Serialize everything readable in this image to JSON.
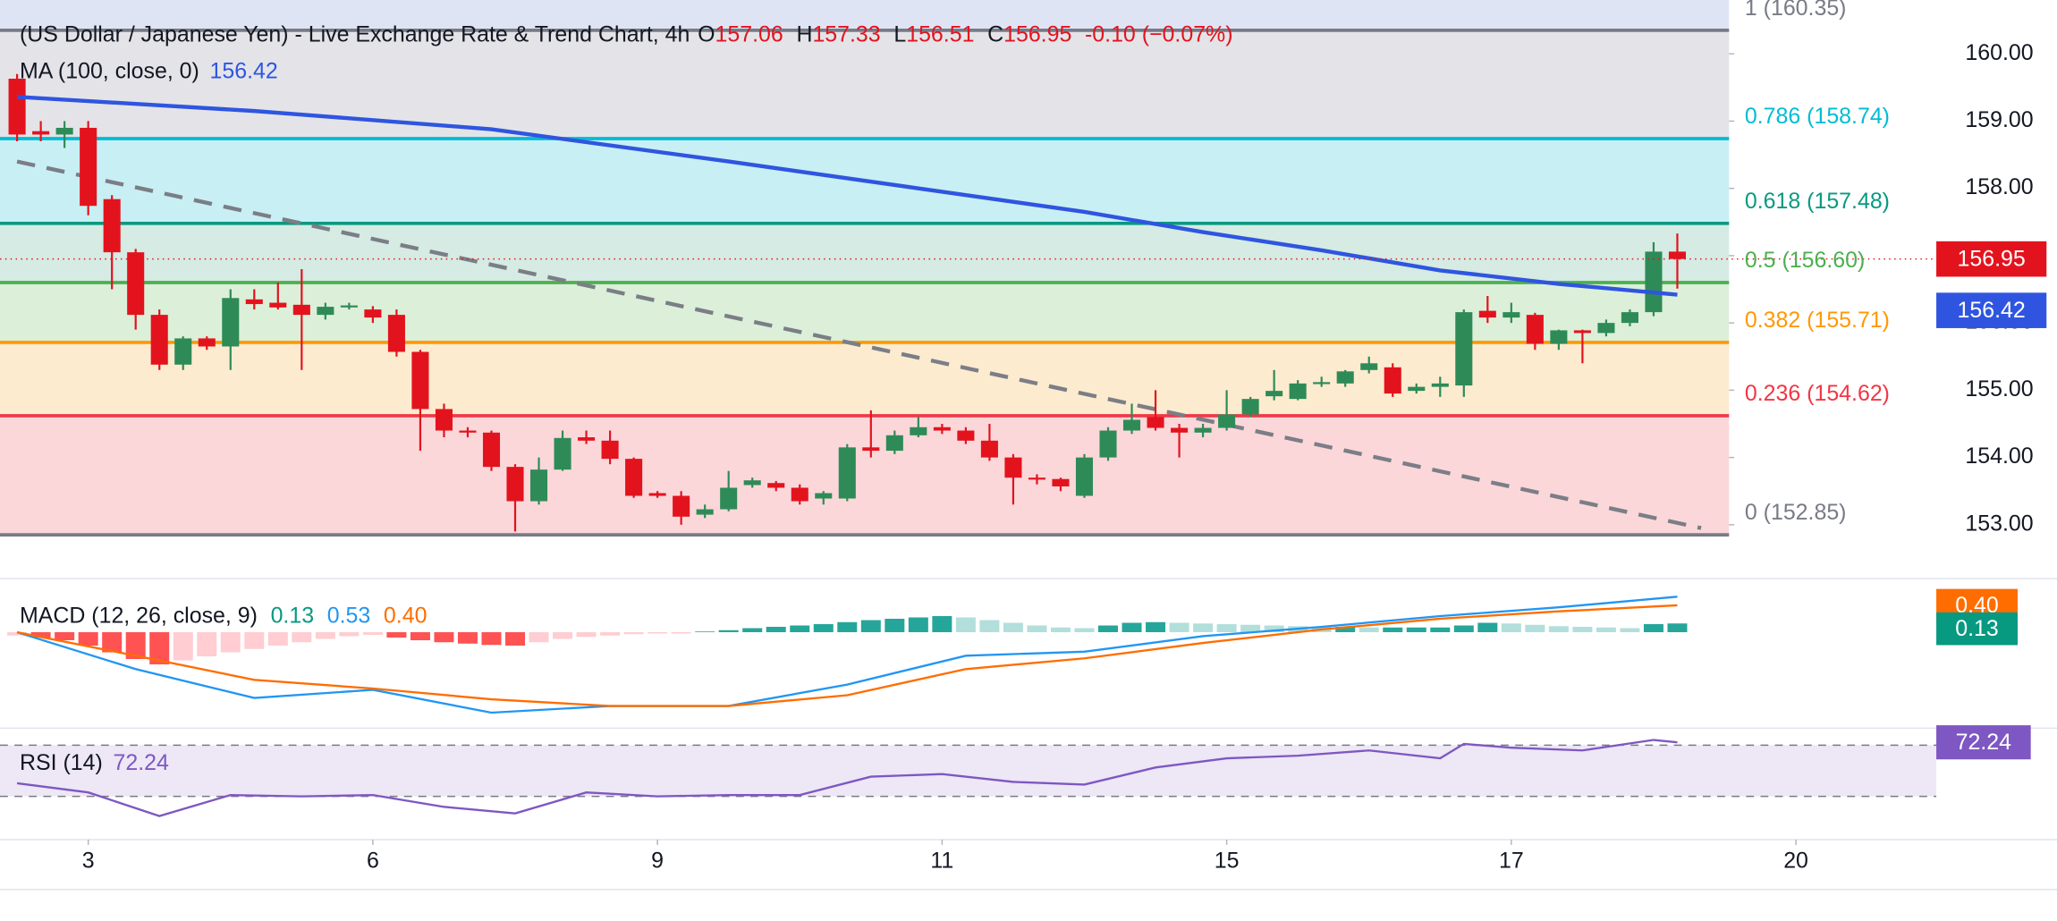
{
  "chart_data": [
    {
      "type": "candlestick",
      "title": "(US Dollar / Japanese Yen) - Live Exchange Rate & Trend Chart, 4h",
      "ohlc_legend": [
        {
          "label": "O",
          "value": 157.06
        },
        {
          "label": "H",
          "value": 157.33
        },
        {
          "label": "L",
          "value": 156.51
        },
        {
          "label": "C",
          "value": 156.95
        }
      ],
      "change": "-0.10 (−0.07%)",
      "xlim": [
        -0.72,
        72.18
      ],
      "xticks": [
        {
          "value": 3,
          "label": "3"
        },
        {
          "value": 15,
          "label": "6"
        },
        {
          "value": 27,
          "label": "9"
        },
        {
          "value": 39,
          "label": "11"
        },
        {
          "value": 51,
          "label": "15"
        },
        {
          "value": 63,
          "label": "17"
        },
        {
          "value": 75,
          "label": "20"
        }
      ],
      "ylim": [
        152.2,
        160.8
      ],
      "yticks": [
        {
          "value": 153,
          "label": "153.00"
        },
        {
          "value": 154,
          "label": "154.00"
        },
        {
          "value": 155,
          "label": "155.00"
        },
        {
          "value": 156,
          "label": "156.00"
        },
        {
          "value": 157,
          "label": "157.00"
        },
        {
          "value": 158,
          "label": "158.00"
        },
        {
          "value": 159,
          "label": "159.00"
        },
        {
          "value": 160,
          "label": "160.00"
        }
      ],
      "up_color": "#2e8b57",
      "down_color": "#e3131e",
      "x": [
        0,
        1,
        2,
        3,
        4,
        5,
        6,
        7,
        8,
        9,
        10,
        11,
        12,
        13,
        14,
        15,
        16,
        17,
        18,
        19,
        20,
        21,
        22,
        23,
        24,
        25,
        26,
        27,
        28,
        29,
        30,
        31,
        32,
        33,
        34,
        35,
        36,
        37,
        38,
        39,
        40,
        41,
        42,
        43,
        44,
        45,
        46,
        47,
        48,
        49,
        50,
        51,
        52,
        53,
        54,
        55,
        56,
        57,
        58,
        59,
        60,
        61,
        62,
        63,
        64,
        65,
        66,
        67,
        68,
        69,
        70
      ],
      "open": [
        159.63,
        158.85,
        158.8,
        158.9,
        157.84,
        157.05,
        156.12,
        155.38,
        155.77,
        155.65,
        156.35,
        156.3,
        156.27,
        156.12,
        156.25,
        156.2,
        156.12,
        155.57,
        154.72,
        154.4,
        154.37,
        153.86,
        153.35,
        153.82,
        154.3,
        154.25,
        153.98,
        153.47,
        153.43,
        153.15,
        153.23,
        153.59,
        153.62,
        153.55,
        153.39,
        153.39,
        154.15,
        154.1,
        154.33,
        154.45,
        154.4,
        154.25,
        154.0,
        153.7,
        153.68,
        153.43,
        154.0,
        154.4,
        154.6,
        154.44,
        154.37,
        154.44,
        154.64,
        154.91,
        154.87,
        155.1,
        155.1,
        155.3,
        155.34,
        154.99,
        155.05,
        155.07,
        156.18,
        156.08,
        156.12,
        155.69,
        155.89,
        155.85,
        156.0,
        156.16,
        157.06
      ],
      "high": [
        159.7,
        159.0,
        159.0,
        159.0,
        157.9,
        157.1,
        156.2,
        155.8,
        155.8,
        156.5,
        156.5,
        156.6,
        156.8,
        156.3,
        156.3,
        156.25,
        156.2,
        155.6,
        154.8,
        154.45,
        154.4,
        153.9,
        154.0,
        154.4,
        154.4,
        154.4,
        154.0,
        153.5,
        153.5,
        153.3,
        153.8,
        153.7,
        153.65,
        153.6,
        153.5,
        154.2,
        154.7,
        154.4,
        154.6,
        154.5,
        154.45,
        154.5,
        154.05,
        153.75,
        153.7,
        154.05,
        154.45,
        154.8,
        155.0,
        154.5,
        154.5,
        155.0,
        154.9,
        155.3,
        155.15,
        155.2,
        155.3,
        155.5,
        155.4,
        155.1,
        155.2,
        156.2,
        156.4,
        156.3,
        156.15,
        155.9,
        155.9,
        156.05,
        156.2,
        157.2,
        157.33
      ],
      "low": [
        158.7,
        158.7,
        158.6,
        157.6,
        156.5,
        155.9,
        155.3,
        155.3,
        155.6,
        155.3,
        156.2,
        156.2,
        155.3,
        156.05,
        156.2,
        156.0,
        155.5,
        154.1,
        154.3,
        154.3,
        153.8,
        152.9,
        153.3,
        153.8,
        154.2,
        153.9,
        153.4,
        153.4,
        153.0,
        153.1,
        153.2,
        153.55,
        153.5,
        153.3,
        153.3,
        153.35,
        154.0,
        154.05,
        154.3,
        154.35,
        154.2,
        153.95,
        153.3,
        153.6,
        153.5,
        153.4,
        153.95,
        154.35,
        154.4,
        154.0,
        154.3,
        154.4,
        154.6,
        154.85,
        154.85,
        155.05,
        155.05,
        155.25,
        154.9,
        154.95,
        154.9,
        154.9,
        156.0,
        156.0,
        155.6,
        155.6,
        155.4,
        155.8,
        155.95,
        156.1,
        156.51
      ],
      "close": [
        158.8,
        158.8,
        158.9,
        157.74,
        157.05,
        156.12,
        155.38,
        155.77,
        155.65,
        156.37,
        156.28,
        156.23,
        156.12,
        156.24,
        156.26,
        156.08,
        155.57,
        154.72,
        154.4,
        154.37,
        153.86,
        153.35,
        153.82,
        154.29,
        154.25,
        153.98,
        153.43,
        153.43,
        153.12,
        153.23,
        153.55,
        153.66,
        153.55,
        153.35,
        153.47,
        154.15,
        154.1,
        154.33,
        154.45,
        154.4,
        154.25,
        154.0,
        153.7,
        153.68,
        153.57,
        154.0,
        154.4,
        154.56,
        154.44,
        154.37,
        154.44,
        154.64,
        154.87,
        154.99,
        155.1,
        155.12,
        155.28,
        155.4,
        154.95,
        155.05,
        155.1,
        156.16,
        156.08,
        156.16,
        155.69,
        155.89,
        155.85,
        156.0,
        156.16,
        157.06,
        156.95
      ],
      "ma": {
        "name": "MA (100, close, 0)",
        "last": 156.42,
        "color": "#2f55e0",
        "x": [
          0,
          10,
          20,
          30,
          40,
          45,
          50,
          55,
          60,
          65,
          70
        ],
        "values": [
          159.36,
          159.15,
          158.88,
          158.4,
          157.9,
          157.65,
          157.35,
          157.08,
          156.78,
          156.58,
          156.42
        ]
      },
      "trendline": {
        "color": "#7b7e86",
        "x": [
          0,
          71
        ],
        "values": [
          158.4,
          152.95
        ]
      },
      "fib_levels": [
        {
          "label": "1 (160.35)",
          "value": 160.35,
          "color": "#787b86",
          "fill": "#e4e4e8"
        },
        {
          "label": "0.786 (158.74)",
          "value": 158.74,
          "color": "#00bcd4",
          "fill": "#c8eff4"
        },
        {
          "label": "0.618 (157.48)",
          "value": 157.48,
          "color": "#089981",
          "fill": "#d5ebe3"
        },
        {
          "label": "0.5 (156.60)",
          "value": 156.6,
          "color": "#4caf50",
          "fill": "#dcefd9"
        },
        {
          "label": "0.382 (155.71)",
          "value": 155.71,
          "color": "#ff9800",
          "fill": "#fdebd0"
        },
        {
          "label": "0.236 (154.62)",
          "value": 154.62,
          "color": "#f23645",
          "fill": "#fbd7da"
        },
        {
          "label": "0 (152.85)",
          "value": 152.85,
          "color": "#787b86",
          "fill": "#ffffff"
        }
      ],
      "badges": [
        {
          "value": 156.95,
          "color": "#e3131e"
        },
        {
          "value": 156.42,
          "color": "#2f55e0"
        }
      ]
    },
    {
      "type": "macd",
      "name": "MACD (12, 26, close, 9)",
      "legend_values": [
        {
          "label": "0.13",
          "color": "#089981"
        },
        {
          "label": "0.53",
          "color": "#2196f3"
        },
        {
          "label": "0.40",
          "color": "#ff6d00"
        }
      ],
      "ylim": [
        -1.43,
        0.76
      ],
      "histogram": {
        "colors": [
          "#26a69a",
          "#b2dfdb",
          "#ffcdd2",
          "#ff5252"
        ],
        "values": [
          -0.05,
          -0.08,
          -0.12,
          -0.2,
          -0.3,
          -0.4,
          -0.48,
          -0.42,
          -0.36,
          -0.3,
          -0.25,
          -0.2,
          -0.15,
          -0.1,
          -0.06,
          -0.04,
          -0.08,
          -0.12,
          -0.15,
          -0.17,
          -0.19,
          -0.2,
          -0.15,
          -0.1,
          -0.07,
          -0.05,
          -0.03,
          -0.02,
          -0.02,
          0.01,
          0.03,
          0.06,
          0.08,
          0.1,
          0.12,
          0.15,
          0.18,
          0.2,
          0.22,
          0.24,
          0.22,
          0.18,
          0.14,
          0.1,
          0.07,
          0.06,
          0.1,
          0.14,
          0.15,
          0.14,
          0.13,
          0.12,
          0.11,
          0.1,
          0.09,
          0.08,
          0.08,
          0.07,
          0.07,
          0.07,
          0.07,
          0.1,
          0.14,
          0.13,
          0.11,
          0.09,
          0.08,
          0.07,
          0.06,
          0.12,
          0.13
        ]
      },
      "series": [
        {
          "name": "MACD",
          "color": "#2196f3",
          "x": [
            0,
            5,
            10,
            15,
            20,
            25,
            30,
            35,
            40,
            45,
            50,
            55,
            60,
            65,
            70
          ],
          "values": [
            0,
            -0.55,
            -0.98,
            -0.86,
            -1.2,
            -1.1,
            -1.1,
            -0.78,
            -0.35,
            -0.29,
            -0.06,
            0.08,
            0.24,
            0.37,
            0.53
          ]
        },
        {
          "name": "Signal",
          "color": "#ff6d00",
          "x": [
            0,
            5,
            10,
            15,
            20,
            25,
            30,
            35,
            40,
            45,
            50,
            55,
            60,
            65,
            70
          ],
          "values": [
            0,
            -0.35,
            -0.71,
            -0.84,
            -1.0,
            -1.1,
            -1.1,
            -0.94,
            -0.55,
            -0.39,
            -0.16,
            0.04,
            0.2,
            0.31,
            0.4
          ]
        }
      ],
      "badges": [
        {
          "value": 0.4,
          "label": "0.40",
          "color": "#ff6d00"
        },
        {
          "value": 0.13,
          "label": "0.13",
          "color": "#089981"
        }
      ]
    },
    {
      "type": "rsi",
      "name": "RSI (14)",
      "last": 72.24,
      "color": "#7e57c2",
      "ylim": [
        -1.8,
        82.3
      ],
      "bands": [
        70,
        30
      ],
      "band_fill": "#ede7f6",
      "x": [
        0,
        3,
        6,
        9,
        12,
        15,
        18,
        21,
        24,
        27,
        30,
        33,
        36,
        39,
        42,
        45,
        48,
        51,
        54,
        57,
        60,
        61,
        63,
        66,
        69,
        70
      ],
      "values": [
        40.3,
        33.1,
        14.6,
        31,
        30,
        31,
        21.8,
        16.7,
        33.1,
        30,
        31,
        31,
        45.4,
        47.4,
        41.3,
        39.2,
        52.6,
        59.7,
        61.8,
        65.9,
        59.7,
        71,
        68,
        65.9,
        74.1,
        72.24
      ]
    }
  ]
}
